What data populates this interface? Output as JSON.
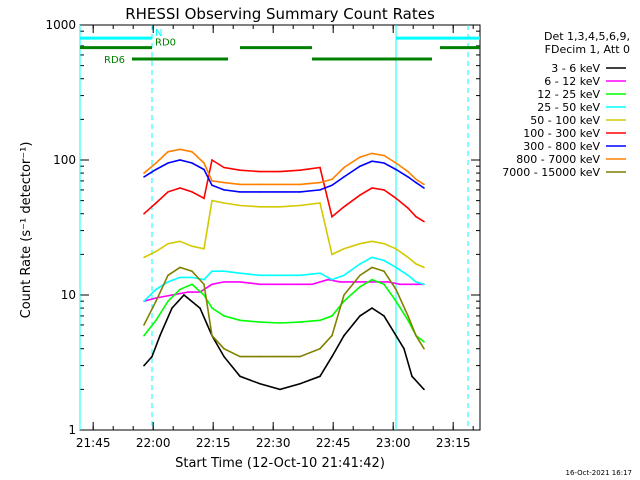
{
  "chart_data": {
    "type": "line",
    "title": "RHESSI Observing Summary Count Rates",
    "xlabel": "Start Time (12-Oct-10 21:41:42)",
    "ylabel": "Count Rate (s⁻¹ detector⁻¹)",
    "y_scale": "log",
    "ylim": [
      1,
      1000
    ],
    "y_ticks": [
      "1",
      "10",
      "100",
      "1000"
    ],
    "x_ticks": [
      {
        "label": "21:45",
        "t": 3.3
      },
      {
        "label": "22:00",
        "t": 18.3
      },
      {
        "label": "22:15",
        "t": 33.3
      },
      {
        "label": "22:30",
        "t": 48.3
      },
      {
        "label": "22:45",
        "t": 63.3
      },
      {
        "label": "23:00",
        "t": 78.3
      },
      {
        "label": "23:15",
        "t": 93.3
      }
    ],
    "xlim_minutes": [
      0,
      100
    ],
    "detector_info": [
      "Det 1,3,4,5,6,9,",
      "FDecim 1, Att 0"
    ],
    "legend_position": "top-right-outside",
    "legend": [
      {
        "label": "3 - 6 keV",
        "color": "#000000"
      },
      {
        "label": "6 - 12 keV",
        "color": "#ff00ff"
      },
      {
        "label": "12 - 25 keV",
        "color": "#00ff00"
      },
      {
        "label": "25 - 50 keV",
        "color": "#00ffff"
      },
      {
        "label": "50 - 100 keV",
        "color": "#d4c800"
      },
      {
        "label": "100 - 300 keV",
        "color": "#ff0000"
      },
      {
        "label": "300 - 800 keV",
        "color": "#0000ff"
      },
      {
        "label": "800 - 7000 keV",
        "color": "#ff8000"
      },
      {
        "label": "7000 - 15000 keV",
        "color": "#808000"
      }
    ],
    "series": [
      {
        "name": "3 - 6 keV",
        "color": "#000000",
        "x": [
          16,
          18,
          20,
          23,
          26,
          30,
          33,
          36,
          40,
          45,
          50,
          55,
          60,
          63,
          66,
          70,
          73,
          76,
          79,
          81,
          83,
          86
        ],
        "y": [
          3,
          3.5,
          5,
          8,
          10,
          8,
          5,
          3.5,
          2.5,
          2.2,
          2.0,
          2.2,
          2.5,
          3.5,
          5,
          7,
          8,
          7,
          5,
          4,
          2.5,
          2
        ]
      },
      {
        "name": "6 - 12 keV",
        "color": "#ff00ff",
        "x": [
          16,
          19,
          23,
          27,
          30,
          33,
          36,
          40,
          45,
          50,
          55,
          58,
          62,
          65,
          69,
          73,
          77,
          80,
          84,
          86
        ],
        "y": [
          9,
          9.5,
          10,
          10.5,
          10.5,
          12,
          12.5,
          12.5,
          12,
          12,
          12,
          12,
          13,
          12.5,
          12.5,
          12.5,
          12.5,
          12,
          12,
          12
        ]
      },
      {
        "name": "12 - 25 keV",
        "color": "#00ff00",
        "x": [
          16,
          19,
          22,
          25,
          28,
          31,
          33,
          36,
          40,
          45,
          50,
          55,
          60,
          63,
          66,
          70,
          73,
          76,
          79,
          82,
          84,
          86
        ],
        "y": [
          5,
          6.5,
          9,
          11,
          12,
          10,
          8,
          7,
          6.5,
          6.3,
          6.2,
          6.3,
          6.5,
          7,
          9,
          11.5,
          13,
          12,
          9,
          6.5,
          5,
          4.5
        ]
      },
      {
        "name": "25 - 50 keV",
        "color": "#00ffff",
        "x": [
          16,
          19,
          22,
          25,
          28,
          31,
          33,
          36,
          40,
          45,
          50,
          55,
          60,
          63,
          66,
          70,
          73,
          76,
          79,
          82,
          84,
          86
        ],
        "y": [
          9,
          11,
          12.5,
          13.5,
          13.5,
          13,
          15,
          15,
          14.5,
          14,
          14,
          14,
          14.5,
          13,
          14,
          17,
          19,
          18,
          16,
          14,
          12.5,
          12
        ]
      },
      {
        "name": "50 - 100 keV",
        "color": "#d4c800",
        "x": [
          16,
          19,
          22,
          25,
          28,
          31,
          33,
          36,
          40,
          45,
          50,
          55,
          60,
          63,
          66,
          70,
          73,
          76,
          79,
          82,
          84,
          86
        ],
        "y": [
          19,
          21,
          24,
          25,
          23,
          22,
          50,
          48,
          46,
          45,
          45,
          46,
          48,
          20,
          22,
          24,
          25,
          24,
          22,
          19,
          17,
          16
        ]
      },
      {
        "name": "100 - 300 keV",
        "color": "#ff0000",
        "x": [
          16,
          19,
          22,
          25,
          28,
          31,
          33,
          36,
          40,
          45,
          50,
          55,
          60,
          63,
          66,
          70,
          73,
          76,
          79,
          82,
          84,
          86
        ],
        "y": [
          40,
          48,
          58,
          62,
          58,
          52,
          100,
          88,
          84,
          82,
          82,
          84,
          88,
          38,
          45,
          55,
          62,
          60,
          52,
          44,
          38,
          35
        ]
      },
      {
        "name": "300 - 800 keV",
        "color": "#0000ff",
        "x": [
          16,
          19,
          22,
          25,
          28,
          31,
          33,
          36,
          40,
          45,
          50,
          55,
          60,
          63,
          66,
          70,
          73,
          76,
          79,
          82,
          84,
          86
        ],
        "y": [
          75,
          85,
          95,
          100,
          95,
          85,
          65,
          60,
          58,
          58,
          58,
          58,
          60,
          65,
          75,
          90,
          98,
          95,
          85,
          75,
          68,
          62
        ]
      },
      {
        "name": "800 - 7000 keV",
        "color": "#ff8000",
        "x": [
          16,
          19,
          22,
          25,
          28,
          31,
          33,
          36,
          40,
          45,
          50,
          55,
          60,
          63,
          66,
          70,
          73,
          76,
          79,
          82,
          84,
          86
        ],
        "y": [
          80,
          95,
          115,
          120,
          115,
          95,
          70,
          68,
          66,
          66,
          66,
          66,
          68,
          72,
          88,
          105,
          112,
          108,
          95,
          82,
          72,
          66
        ]
      },
      {
        "name": "7000 - 15000 keV",
        "color": "#808000",
        "x": [
          16,
          19,
          22,
          25,
          28,
          31,
          33,
          36,
          40,
          45,
          50,
          55,
          60,
          63,
          66,
          70,
          73,
          76,
          79,
          82,
          84,
          86
        ],
        "y": [
          6,
          9,
          14,
          16,
          15,
          12,
          5,
          4,
          3.5,
          3.5,
          3.5,
          3.5,
          4,
          5,
          10,
          14,
          16,
          15,
          11,
          7,
          5,
          4
        ]
      }
    ],
    "state_bars": [
      {
        "label": "N",
        "color": "#00ffff",
        "y": 800,
        "segments": [
          [
            0,
            18
          ],
          [
            79,
            100
          ]
        ]
      },
      {
        "label": "RD0",
        "color": "#008000",
        "y": 680,
        "segments": [
          [
            0,
            18
          ],
          [
            40,
            58
          ],
          [
            90,
            100
          ]
        ]
      },
      {
        "label": "RD6",
        "color": "#008000",
        "y": 560,
        "segments": [
          [
            13,
            37
          ],
          [
            58,
            88
          ]
        ]
      }
    ],
    "vertical_markers": [
      {
        "t": 0,
        "color": "#00ffff",
        "style": "solid"
      },
      {
        "t": 18,
        "color": "#00ffff",
        "style": "dashed"
      },
      {
        "t": 79,
        "color": "#00ffff",
        "style": "solid"
      },
      {
        "t": 97,
        "color": "#00ffff",
        "style": "dashed"
      }
    ]
  },
  "footer": {
    "timestamp": "16-Oct-2021 16:17"
  }
}
